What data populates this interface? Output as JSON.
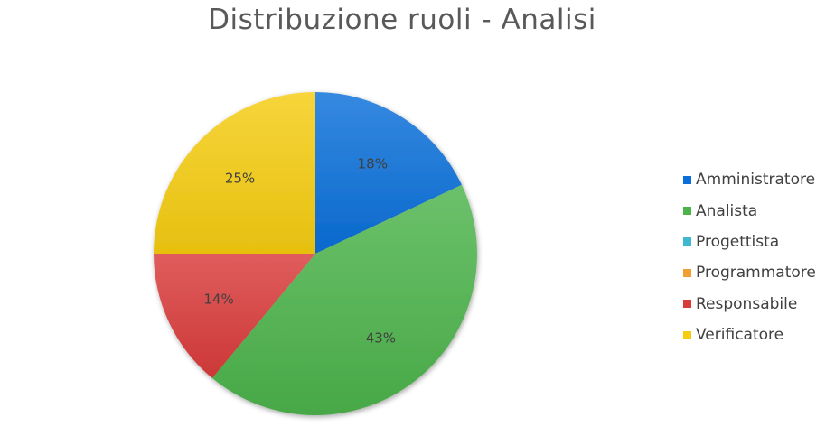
{
  "chart_data": {
    "type": "pie",
    "title": "Distribuzione ruoli - Analisi",
    "categories": [
      "Amministratore",
      "Analista",
      "Progettista",
      "Programmatore",
      "Responsabile",
      "Verificatore"
    ],
    "values": [
      18,
      43,
      0,
      0,
      14,
      25
    ],
    "labels": [
      "18%",
      "43%",
      "",
      "",
      "14%",
      "25%"
    ],
    "colors": [
      "#0a6fd9",
      "#4cb34a",
      "#3fb7cf",
      "#f0a030",
      "#d93a3a",
      "#f5cc10"
    ],
    "legend": "right",
    "start_angle": "12 o'clock, clockwise"
  }
}
